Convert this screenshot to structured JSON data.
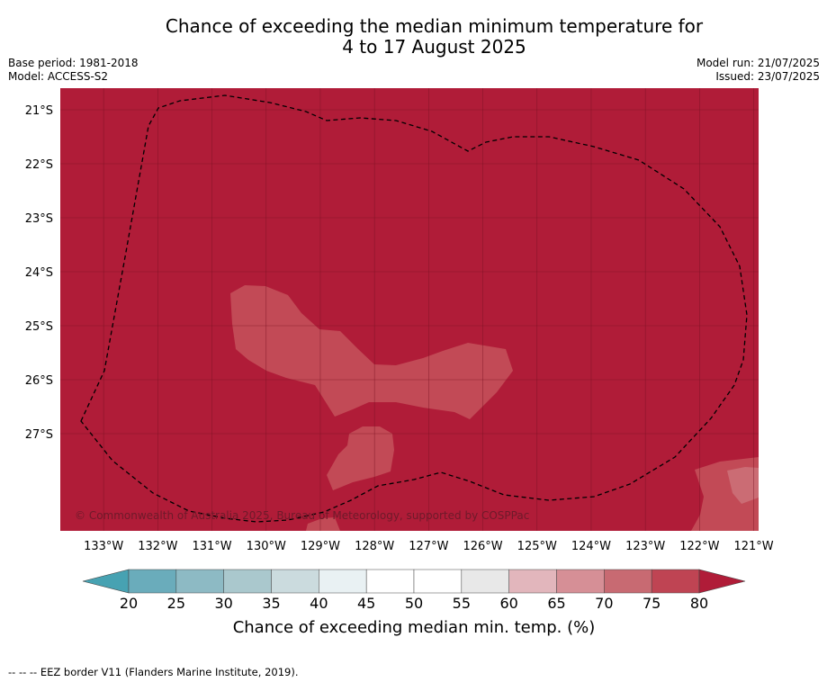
{
  "title_line1": "Chance of exceeding the median minimum temperature for",
  "title_line2": "4 to 17 August 2025",
  "base_period": "Base period: 1981-2018",
  "model": "Model: ACCESS-S2",
  "model_run": "Model run: 21/07/2025",
  "issued": "Issued: 23/07/2025",
  "copyright": "© Commonwealth of Australia 2025, Bureau of Meteorology, supported by COSPPac",
  "colorbar_title": "Chance of exceeding median min. temp. (%)",
  "footer_note": "--  --  -- EEZ border V11 (Flanders Marine Institute, 2019).",
  "colors": {
    "dominant": "#b01c38",
    "bin_70_75": "#c24a56",
    "bin_65_70": "#cb6c74",
    "cb_bins": [
      "#6aacbb",
      "#8dbac4",
      "#aac8cd",
      "#cbdbde",
      "#e9f1f3",
      "#ffffff",
      "#ffffff",
      "#e8e8e8",
      "#e2b6bc",
      "#d68f96",
      "#c86a72",
      "#bf4453"
    ],
    "cb_under": "#47a2b2",
    "cb_over": "#b01c38"
  },
  "chart_data": {
    "type": "map",
    "lon_range": [
      -133.8,
      -120.9
    ],
    "lat_range": [
      -28.6,
      -20.6
    ],
    "lon_ticks": [
      "133°W",
      "132°W",
      "131°W",
      "130°W",
      "129°W",
      "128°W",
      "127°W",
      "126°W",
      "125°W",
      "124°W",
      "123°W",
      "122°W",
      "121°W"
    ],
    "lat_ticks": [
      "21°S",
      "22°S",
      "23°S",
      "24°S",
      "25°S",
      "26°S",
      "27°S"
    ],
    "colorbar_ticks": [
      "20",
      "25",
      "30",
      "35",
      "40",
      "45",
      "50",
      "55",
      "60",
      "65",
      "70",
      "75",
      "80"
    ],
    "colorbar_extend": "both",
    "dominant_range_percent": "80+",
    "regions": [
      {
        "name": "central",
        "range_percent": "70-75"
      },
      {
        "name": "south-central",
        "range_percent": "70-75"
      },
      {
        "name": "bottom-left",
        "range_percent": "70-75"
      },
      {
        "name": "bottom-right",
        "range_percent": "70-75"
      },
      {
        "name": "bottom-right-inner",
        "range_percent": "65-70"
      }
    ],
    "eez_border": "dashed"
  }
}
